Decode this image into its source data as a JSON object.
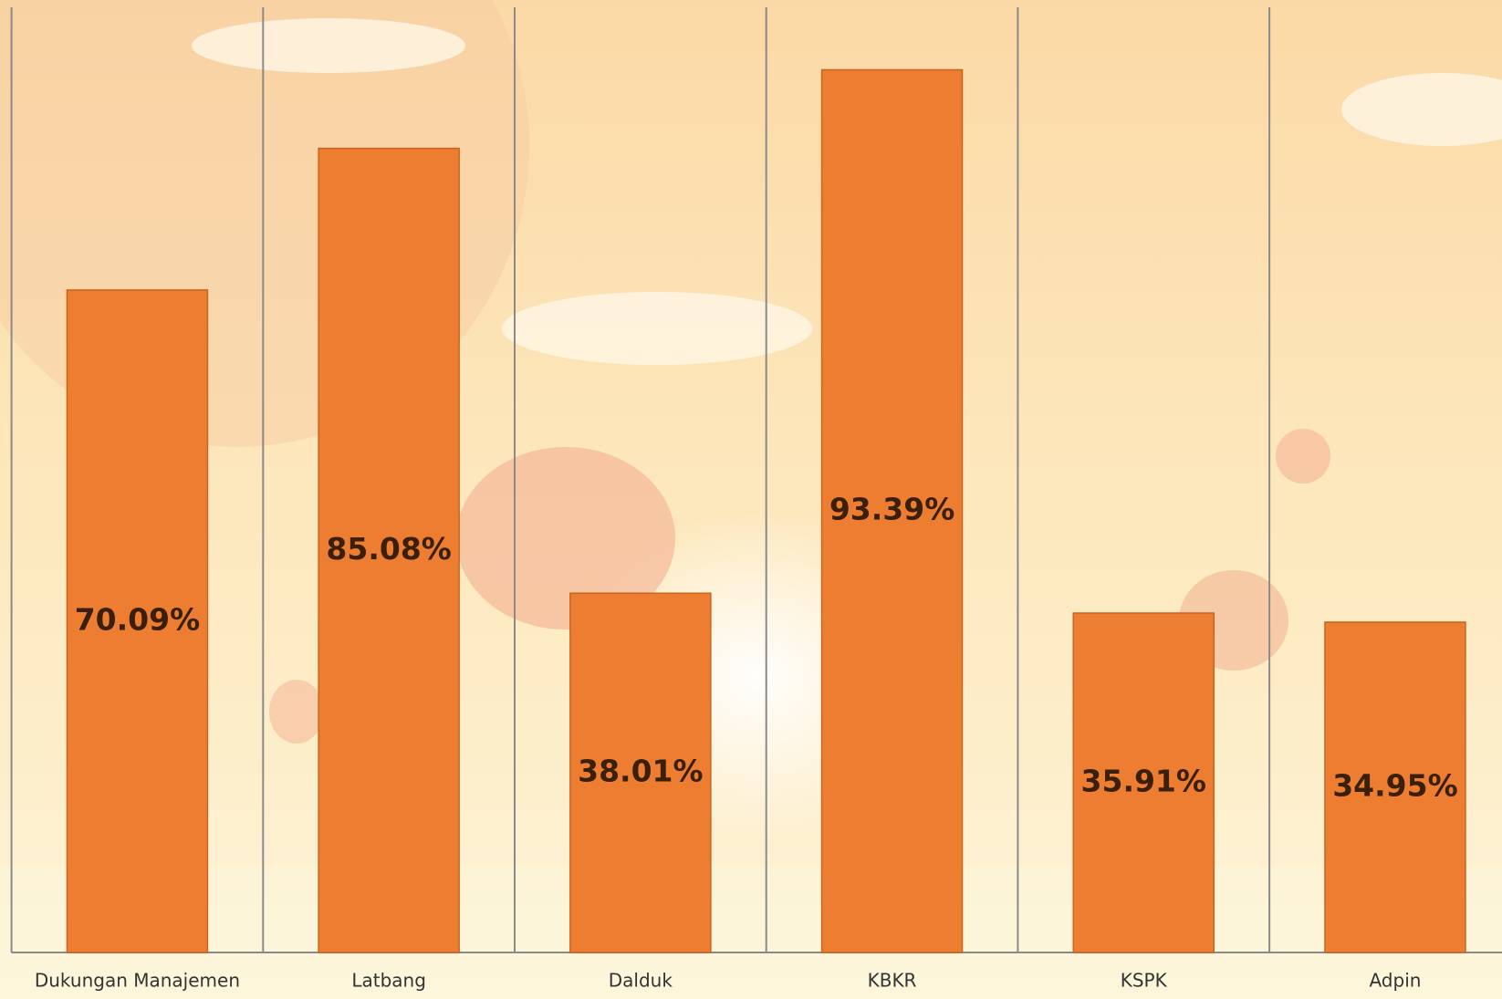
{
  "chart_data": {
    "type": "bar",
    "categories": [
      "Dukungan Manajemen",
      "Latbang",
      "Dalduk",
      "KBKR",
      "KSPK",
      "Adpin"
    ],
    "values": [
      70.09,
      85.08,
      38.01,
      93.39,
      35.91,
      34.95
    ],
    "value_labels": [
      "70.09%",
      "85.08%",
      "38.01%",
      "93.39%",
      "35.91%",
      "34.95%"
    ],
    "color": "#ed7d31",
    "ylim": [
      0,
      100
    ]
  }
}
